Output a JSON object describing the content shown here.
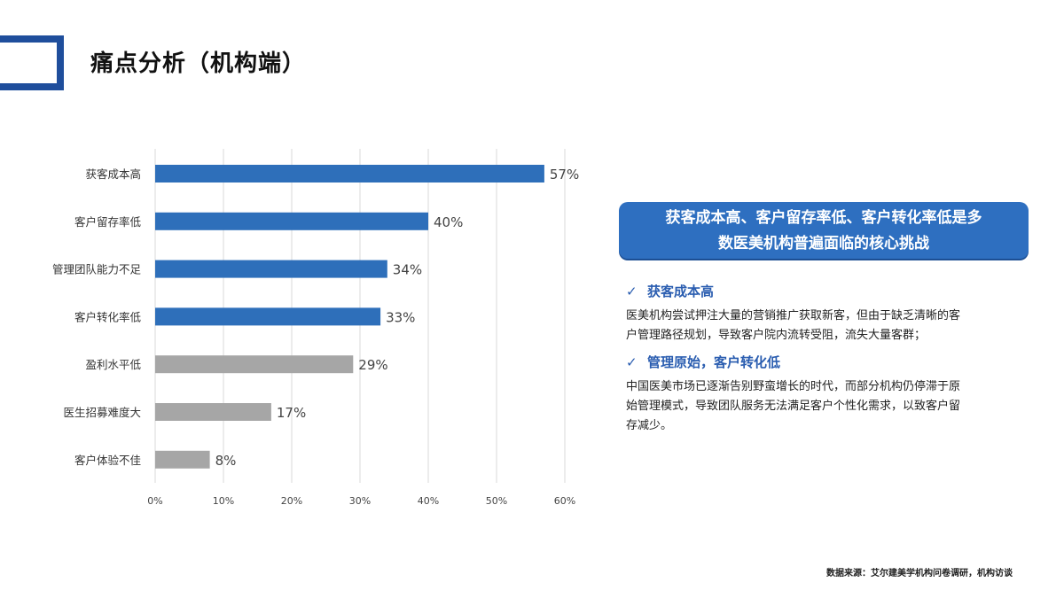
{
  "header": {
    "title": "痛点分析（机构端）"
  },
  "chart_data": {
    "type": "bar",
    "orientation": "horizontal",
    "categories": [
      "获客成本高",
      "客户留存率低",
      "管理团队能力不足",
      "客户转化率低",
      "盈利水平低",
      "医生招募难度大",
      "客户体验不佳"
    ],
    "values": [
      57,
      40,
      34,
      33,
      29,
      17,
      8
    ],
    "value_labels": [
      "57%",
      "40%",
      "34%",
      "33%",
      "29%",
      "17%",
      "8%"
    ],
    "highlight": [
      true,
      true,
      true,
      true,
      false,
      false,
      false
    ],
    "colors": {
      "highlight": "#2e6fba",
      "normal": "#a6a6a6",
      "grid": "#d9d9d9"
    },
    "xlim": [
      0,
      60
    ],
    "xticks": [
      0,
      10,
      20,
      30,
      40,
      50,
      60
    ],
    "xtick_labels": [
      "0%",
      "10%",
      "20%",
      "30%",
      "40%",
      "50%",
      "60%"
    ],
    "grid": true,
    "xlabel": "",
    "ylabel": "",
    "title": ""
  },
  "callout": {
    "line1": "获客成本高、客户留存率低、客户转化率低是多",
    "line2": "数医美机构普遍面临的核心挑战"
  },
  "sections": [
    {
      "heading": "获客成本高",
      "body": [
        "医美机构尝试押注大量的营销推广获取新客，但由于缺乏清晰的客",
        "户管理路径规划，导致客户院内流转受阻，流失大量客群；"
      ]
    },
    {
      "heading": "管理原始，客户转化低",
      "body": [
        "中国医美市场已逐渐告别野蛮增长的时代，而部分机构仍停滞于原",
        "始管理模式，导致团队服务无法满足客户个性化需求，以致客户留",
        "存减少。"
      ]
    }
  ],
  "icons": {
    "check": "check-icon"
  },
  "source": "数据来源：艾尔建美学机构问卷调研，机构访谈"
}
